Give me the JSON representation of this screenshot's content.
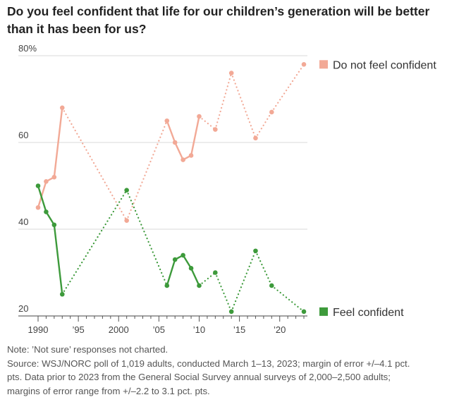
{
  "title": "Do you feel confident that life for our children’s generation will be better than it has been for us?",
  "chart_data": {
    "type": "line",
    "ylim": [
      20,
      80
    ],
    "xlim": [
      1990,
      2023
    ],
    "y_ticks": [
      {
        "value": 80,
        "label": "80%"
      },
      {
        "value": 60,
        "label": "60"
      },
      {
        "value": 40,
        "label": "40"
      },
      {
        "value": 20,
        "label": "20"
      }
    ],
    "x_ticks": [
      {
        "value": 1990,
        "label": "1990"
      },
      {
        "value": 1995,
        "label": "’95"
      },
      {
        "value": 2000,
        "label": "2000"
      },
      {
        "value": 2005,
        "label": "’05"
      },
      {
        "value": 2010,
        "label": "’10"
      },
      {
        "value": 2015,
        "label": "’15"
      },
      {
        "value": 2020,
        "label": "’20"
      }
    ],
    "grid": true,
    "legend_position": "right",
    "series": [
      {
        "name": "Do not feel confident",
        "color": "#f2a996",
        "points": [
          {
            "x": 1990,
            "y": 45
          },
          {
            "x": 1991,
            "y": 51
          },
          {
            "x": 1992,
            "y": 52
          },
          {
            "x": 1993,
            "y": 68
          },
          {
            "x": 2001,
            "y": 42
          },
          {
            "x": 2006,
            "y": 65
          },
          {
            "x": 2007,
            "y": 60
          },
          {
            "x": 2008,
            "y": 56
          },
          {
            "x": 2009,
            "y": 57
          },
          {
            "x": 2010,
            "y": 66
          },
          {
            "x": 2012,
            "y": 63
          },
          {
            "x": 2014,
            "y": 76
          },
          {
            "x": 2017,
            "y": 61
          },
          {
            "x": 2019,
            "y": 67
          },
          {
            "x": 2023,
            "y": 78
          }
        ]
      },
      {
        "name": "Feel confident",
        "color": "#3d9a3b",
        "points": [
          {
            "x": 1990,
            "y": 50
          },
          {
            "x": 1991,
            "y": 44
          },
          {
            "x": 1992,
            "y": 41
          },
          {
            "x": 1993,
            "y": 25
          },
          {
            "x": 2001,
            "y": 49
          },
          {
            "x": 2006,
            "y": 27
          },
          {
            "x": 2007,
            "y": 33
          },
          {
            "x": 2008,
            "y": 34
          },
          {
            "x": 2009,
            "y": 31
          },
          {
            "x": 2010,
            "y": 27
          },
          {
            "x": 2012,
            "y": 30
          },
          {
            "x": 2014,
            "y": 21
          },
          {
            "x": 2017,
            "y": 35
          },
          {
            "x": 2019,
            "y": 27
          },
          {
            "x": 2023,
            "y": 21
          }
        ]
      }
    ],
    "connections": [
      "solid",
      "solid",
      "solid",
      "dotted",
      "dotted",
      "solid",
      "solid",
      "solid",
      "solid",
      "dotted",
      "dotted",
      "dotted",
      "dotted",
      "dotted"
    ]
  },
  "notes": [
    "Note: ’Not sure’ responses not charted.",
    "Source: WSJ/NORC poll of 1,019 adults, conducted March 1–13, 2023; margin of error +/–4.1 pct.",
    "pts. Data prior to 2023 from the General Social Survey annual surveys of 2,000–2,500 adults;",
    "margins of error range from +/–2.2 to 3.1 pct. pts."
  ]
}
